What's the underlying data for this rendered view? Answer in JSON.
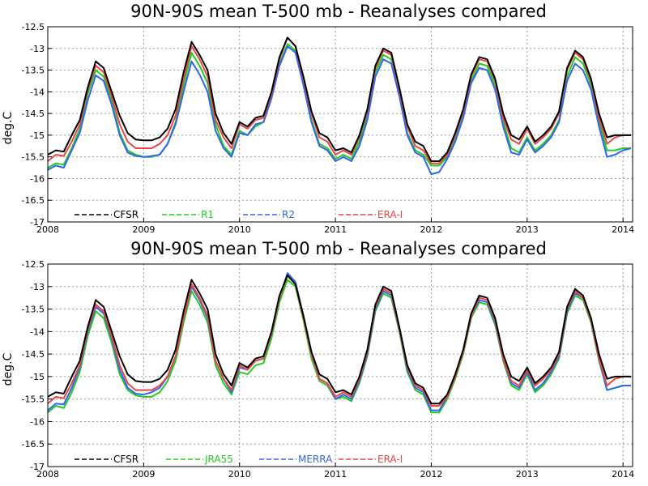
{
  "colors": {
    "CFSR": "#000000",
    "R1": "#22cc22",
    "R2": "#3366ee",
    "ERA-I": "#ee4444",
    "JRA55": "#22cc22",
    "MERRA": "#3366ee"
  },
  "chart_data": [
    {
      "type": "line",
      "title": "90N-90S mean T-500 mb - Reanalyses compared",
      "xlabel": "",
      "ylabel": "deg.C",
      "xlim": [
        2008.0,
        2014.1
      ],
      "ylim": [
        -17,
        -12.5
      ],
      "grid": true,
      "legend_position": "bottom",
      "x_ticks": [
        "2008",
        "2009",
        "2010",
        "2011",
        "2012",
        "2013",
        "2014"
      ],
      "y_ticks": [
        "-12.5",
        "-13",
        "-13.5",
        "-14",
        "-14.5",
        "-15",
        "-15.5",
        "-16",
        "-16.5",
        "-17"
      ],
      "x_start": 2008.0,
      "x_step": 0.08333,
      "series": [
        {
          "name": "CFSR",
          "values": [
            -15.45,
            -15.35,
            -15.38,
            -15.0,
            -14.65,
            -13.9,
            -13.3,
            -13.45,
            -14.0,
            -14.55,
            -14.95,
            -15.1,
            -15.12,
            -15.12,
            -15.05,
            -14.85,
            -14.4,
            -13.55,
            -12.85,
            -13.15,
            -13.5,
            -14.5,
            -14.95,
            -15.2,
            -14.7,
            -14.8,
            -14.6,
            -14.55,
            -14.0,
            -13.2,
            -12.75,
            -12.95,
            -13.65,
            -14.45,
            -14.95,
            -15.05,
            -15.35,
            -15.3,
            -15.4,
            -15.0,
            -14.4,
            -13.4,
            -13.0,
            -13.1,
            -13.9,
            -14.75,
            -15.15,
            -15.25,
            -15.6,
            -15.6,
            -15.4,
            -14.95,
            -14.4,
            -13.6,
            -13.2,
            -13.25,
            -13.7,
            -14.5,
            -15.0,
            -15.1,
            -14.8,
            -15.15,
            -15.0,
            -14.8,
            -14.45,
            -13.45,
            -13.05,
            -13.2,
            -13.7,
            -14.5,
            -15.05,
            -15.0,
            -15.0,
            -15.0
          ]
        },
        {
          "name": "R1",
          "values": [
            -15.75,
            -15.65,
            -15.68,
            -15.3,
            -14.85,
            -14.05,
            -13.5,
            -13.65,
            -14.2,
            -14.95,
            -15.35,
            -15.45,
            -15.5,
            -15.5,
            -15.45,
            -15.2,
            -14.7,
            -13.85,
            -13.1,
            -13.4,
            -13.8,
            -14.75,
            -15.25,
            -15.45,
            -14.9,
            -15.0,
            -14.8,
            -14.7,
            -14.15,
            -13.35,
            -12.9,
            -13.05,
            -13.8,
            -14.65,
            -15.2,
            -15.3,
            -15.55,
            -15.45,
            -15.55,
            -15.15,
            -14.55,
            -13.55,
            -13.15,
            -13.25,
            -14.05,
            -14.95,
            -15.35,
            -15.45,
            -15.7,
            -15.7,
            -15.5,
            -15.05,
            -14.5,
            -13.75,
            -13.35,
            -13.4,
            -13.85,
            -14.7,
            -15.3,
            -15.4,
            -15.05,
            -15.35,
            -15.2,
            -15.0,
            -14.65,
            -13.65,
            -13.2,
            -13.35,
            -13.85,
            -14.7,
            -15.35,
            -15.35,
            -15.3,
            -15.3
          ]
        },
        {
          "name": "R2",
          "values": [
            -15.8,
            -15.7,
            -15.75,
            -15.35,
            -14.95,
            -14.2,
            -13.62,
            -13.75,
            -14.3,
            -15.0,
            -15.4,
            -15.48,
            -15.5,
            -15.48,
            -15.45,
            -15.2,
            -14.75,
            -14.0,
            -13.3,
            -13.6,
            -14.0,
            -14.9,
            -15.3,
            -15.5,
            -14.95,
            -15.0,
            -14.75,
            -14.7,
            -14.15,
            -13.4,
            -12.95,
            -13.1,
            -13.85,
            -14.7,
            -15.25,
            -15.35,
            -15.6,
            -15.5,
            -15.6,
            -15.25,
            -14.65,
            -13.65,
            -13.25,
            -13.35,
            -14.1,
            -15.0,
            -15.4,
            -15.5,
            -15.9,
            -15.85,
            -15.55,
            -15.15,
            -14.6,
            -13.8,
            -13.45,
            -13.5,
            -13.95,
            -14.8,
            -15.4,
            -15.45,
            -15.1,
            -15.4,
            -15.25,
            -15.05,
            -14.7,
            -13.75,
            -13.35,
            -13.5,
            -13.95,
            -14.8,
            -15.5,
            -15.45,
            -15.35,
            -15.3
          ]
        },
        {
          "name": "ERA-I",
          "values": [
            -15.6,
            -15.45,
            -15.48,
            -15.15,
            -14.75,
            -13.95,
            -13.4,
            -13.55,
            -14.1,
            -14.75,
            -15.15,
            -15.3,
            -15.3,
            -15.3,
            -15.2,
            -15.0,
            -14.55,
            -13.7,
            -12.95,
            -13.25,
            -13.65,
            -14.65,
            -15.05,
            -15.3,
            -14.75,
            -14.85,
            -14.65,
            -14.6,
            -14.05,
            -13.25,
            -12.75,
            -12.95,
            -13.7,
            -14.5,
            -15.05,
            -15.15,
            -15.45,
            -15.35,
            -15.45,
            -15.05,
            -14.45,
            -13.45,
            -13.05,
            -13.15,
            -13.95,
            -14.8,
            -15.25,
            -15.35,
            -15.65,
            -15.65,
            -15.45,
            -15.0,
            -14.45,
            -13.65,
            -13.25,
            -13.3,
            -13.75,
            -14.6,
            -15.1,
            -15.2,
            -14.85,
            -15.2,
            -15.05,
            -14.85,
            -14.5,
            -13.5,
            -13.1,
            -13.25,
            -13.75,
            -14.6,
            -15.2,
            -15.05,
            -15.0,
            -15.0
          ]
        }
      ]
    },
    {
      "type": "line",
      "title": "90N-90S mean T-500 mb - Reanalyses compared",
      "xlabel": "",
      "ylabel": "deg.C",
      "xlim": [
        2008.0,
        2014.1
      ],
      "ylim": [
        -17,
        -12.5
      ],
      "grid": true,
      "legend_position": "bottom",
      "x_ticks": [
        "2008",
        "2009",
        "2010",
        "2011",
        "2012",
        "2013",
        "2014"
      ],
      "y_ticks": [
        "-12.5",
        "-13",
        "-13.5",
        "-14",
        "-14.5",
        "-15",
        "-15.5",
        "-16",
        "-16.5",
        "-17"
      ],
      "x_start": 2008.0,
      "x_step": 0.08333,
      "series": [
        {
          "name": "CFSR",
          "values": [
            -15.45,
            -15.35,
            -15.38,
            -15.0,
            -14.65,
            -13.9,
            -13.3,
            -13.45,
            -14.0,
            -14.55,
            -14.95,
            -15.1,
            -15.12,
            -15.12,
            -15.05,
            -14.85,
            -14.4,
            -13.55,
            -12.85,
            -13.15,
            -13.5,
            -14.5,
            -14.95,
            -15.2,
            -14.7,
            -14.8,
            -14.6,
            -14.55,
            -14.0,
            -13.2,
            -12.75,
            -12.95,
            -13.65,
            -14.45,
            -14.95,
            -15.05,
            -15.35,
            -15.3,
            -15.4,
            -15.0,
            -14.4,
            -13.4,
            -13.0,
            -13.1,
            -13.9,
            -14.75,
            -15.15,
            -15.25,
            -15.6,
            -15.6,
            -15.4,
            -14.95,
            -14.4,
            -13.6,
            -13.2,
            -13.25,
            -13.7,
            -14.5,
            -15.0,
            -15.1,
            -14.8,
            -15.15,
            -15.0,
            -14.8,
            -14.45,
            -13.45,
            -13.05,
            -13.2,
            -13.7,
            -14.5,
            -15.05,
            -15.0,
            -15.0,
            -15.0
          ]
        },
        {
          "name": "JRA55",
          "values": [
            -15.8,
            -15.65,
            -15.7,
            -15.35,
            -14.9,
            -14.1,
            -13.55,
            -13.7,
            -14.25,
            -14.95,
            -15.3,
            -15.42,
            -15.45,
            -15.45,
            -15.35,
            -15.1,
            -14.65,
            -13.8,
            -13.1,
            -13.4,
            -13.8,
            -14.75,
            -15.15,
            -15.4,
            -14.9,
            -14.95,
            -14.75,
            -14.7,
            -14.15,
            -13.35,
            -12.85,
            -13.0,
            -13.75,
            -14.6,
            -15.1,
            -15.2,
            -15.5,
            -15.45,
            -15.55,
            -15.15,
            -14.55,
            -13.55,
            -13.15,
            -13.25,
            -14.0,
            -14.9,
            -15.3,
            -15.4,
            -15.8,
            -15.8,
            -15.5,
            -15.05,
            -14.5,
            -13.7,
            -13.35,
            -13.4,
            -13.85,
            -14.65,
            -15.2,
            -15.3,
            -14.95,
            -15.35,
            -15.2,
            -14.95,
            -14.6,
            -13.6,
            -13.2,
            -13.3,
            -13.8,
            -14.65,
            -15.3,
            -15.25,
            -15.2,
            -15.2
          ]
        },
        {
          "name": "MERRA",
          "values": [
            -15.75,
            -15.6,
            -15.62,
            -15.25,
            -14.8,
            -14.0,
            -13.45,
            -13.6,
            -14.15,
            -14.85,
            -15.25,
            -15.38,
            -15.4,
            -15.35,
            -15.25,
            -15.0,
            -14.55,
            -13.7,
            -13.0,
            -13.3,
            -13.7,
            -14.65,
            -15.05,
            -15.35,
            -14.8,
            -14.85,
            -14.65,
            -14.6,
            -14.05,
            -13.25,
            -12.7,
            -12.9,
            -13.65,
            -14.5,
            -15.05,
            -15.15,
            -15.5,
            -15.4,
            -15.5,
            -15.1,
            -14.5,
            -13.5,
            -13.1,
            -13.2,
            -13.95,
            -14.85,
            -15.25,
            -15.35,
            -15.75,
            -15.75,
            -15.45,
            -15.0,
            -14.45,
            -13.65,
            -13.3,
            -13.35,
            -13.8,
            -14.6,
            -15.15,
            -15.25,
            -14.9,
            -15.3,
            -15.15,
            -14.9,
            -14.55,
            -13.55,
            -13.15,
            -13.25,
            -13.75,
            -14.6,
            -15.3,
            -15.25,
            -15.2,
            -15.2
          ]
        },
        {
          "name": "ERA-I",
          "values": [
            -15.6,
            -15.45,
            -15.48,
            -15.15,
            -14.75,
            -13.95,
            -13.4,
            -13.55,
            -14.1,
            -14.75,
            -15.15,
            -15.3,
            -15.3,
            -15.3,
            -15.2,
            -15.0,
            -14.55,
            -13.7,
            -12.95,
            -13.25,
            -13.65,
            -14.65,
            -15.05,
            -15.3,
            -14.75,
            -14.85,
            -14.65,
            -14.6,
            -14.05,
            -13.25,
            -12.75,
            -12.95,
            -13.7,
            -14.5,
            -15.05,
            -15.15,
            -15.45,
            -15.35,
            -15.45,
            -15.05,
            -14.45,
            -13.45,
            -13.05,
            -13.15,
            -13.95,
            -14.8,
            -15.2,
            -15.3,
            -15.65,
            -15.65,
            -15.45,
            -15.0,
            -14.45,
            -13.65,
            -13.25,
            -13.3,
            -13.75,
            -14.6,
            -15.1,
            -15.2,
            -14.85,
            -15.2,
            -15.05,
            -14.85,
            -14.5,
            -13.5,
            -13.1,
            -13.25,
            -13.75,
            -14.6,
            -15.2,
            -15.05,
            -15.0,
            -15.0
          ]
        }
      ]
    }
  ]
}
